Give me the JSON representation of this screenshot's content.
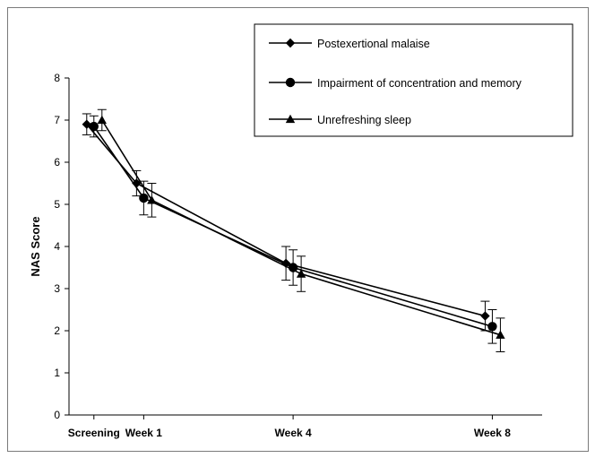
{
  "chart_data": {
    "type": "line",
    "title": "",
    "xlabel": "",
    "ylabel": "NAS Score",
    "ylim": [
      0,
      8
    ],
    "yticks": [
      0,
      1,
      2,
      3,
      4,
      5,
      6,
      7,
      8
    ],
    "x": [
      0,
      1,
      4,
      8
    ],
    "xlim": [
      -0.5,
      9
    ],
    "xtick_labels": [
      "Screening",
      "Week 1",
      "Week 4",
      "Week 8"
    ],
    "grid": false,
    "legend_position": "top-right",
    "series": [
      {
        "name": "Postexertional malaise",
        "marker": "diamond",
        "values": [
          6.9,
          5.5,
          3.6,
          2.35
        ],
        "errors": [
          0.25,
          0.3,
          0.4,
          0.35
        ]
      },
      {
        "name": "Impairment of concentration and memory",
        "marker": "circle",
        "values": [
          6.85,
          5.15,
          3.5,
          2.1
        ],
        "errors": [
          0.25,
          0.4,
          0.42,
          0.4
        ]
      },
      {
        "name": "Unrefreshing sleep",
        "marker": "triangle",
        "values": [
          7.0,
          5.1,
          3.35,
          1.9
        ],
        "errors": [
          0.25,
          0.4,
          0.42,
          0.4
        ]
      }
    ]
  }
}
